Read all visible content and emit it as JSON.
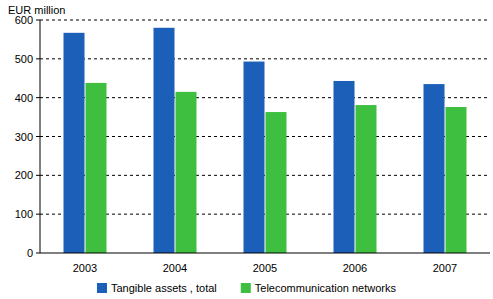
{
  "chart_data": {
    "type": "bar",
    "y_label": "EUR million",
    "categories": [
      "2003",
      "2004",
      "2005",
      "2006",
      "2007"
    ],
    "series": [
      {
        "name": "Tangible assets , total",
        "color": "#1c5fb8",
        "values": [
          567,
          580,
          493,
          443,
          435
        ]
      },
      {
        "name": "Telecommunication networks",
        "color": "#3fbf3f",
        "values": [
          438,
          415,
          363,
          381,
          376
        ]
      }
    ],
    "ylim": [
      0,
      600
    ],
    "yticks": [
      0,
      100,
      200,
      300,
      400,
      500,
      600
    ],
    "grid": true,
    "legend": "bottom"
  }
}
